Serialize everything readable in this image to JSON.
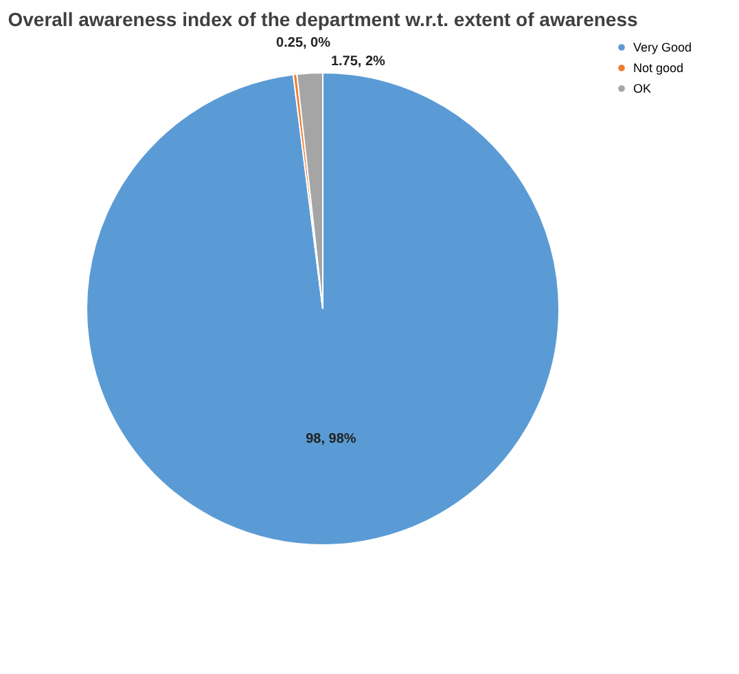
{
  "chart_data": {
    "type": "pie",
    "title": "Overall awareness index of the department w.r.t. extent of awareness",
    "categories": [
      "Very Good",
      "Not good",
      "OK"
    ],
    "values": [
      98,
      0.25,
      1.75
    ],
    "colors": [
      "#5b9bd5",
      "#ed7d31",
      "#a5a5a5"
    ],
    "value_labels": [
      "98, 98%",
      "0.25, 0%",
      "1.75, 2%"
    ],
    "legend": "right"
  }
}
